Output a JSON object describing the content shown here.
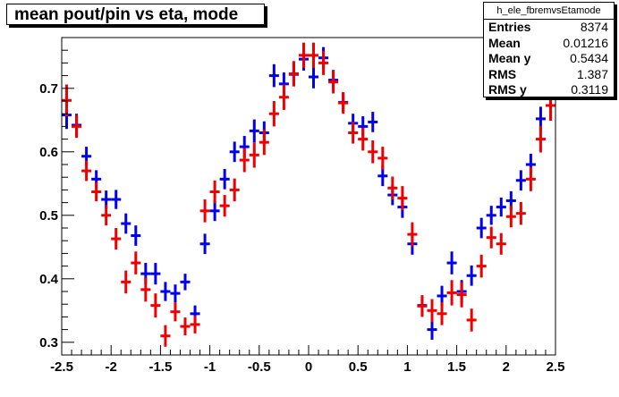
{
  "title": "mean pout/pin vs eta, mode",
  "stats": {
    "name": "h_ele_fbremvsEtamode",
    "rows": [
      {
        "key": "Entries",
        "value": "8374"
      },
      {
        "key": "Mean",
        "value": "0.01216"
      },
      {
        "key": "Mean y",
        "value": "0.5434"
      },
      {
        "key": "RMS",
        "value": "1.387"
      },
      {
        "key": "RMS y",
        "value": "0.3119"
      }
    ]
  },
  "chart_data": {
    "type": "scatter",
    "title": "mean pout/pin vs eta, mode",
    "xlabel": "",
    "ylabel": "",
    "xlim": [
      -2.5,
      2.5
    ],
    "ylim": [
      0.28,
      0.78
    ],
    "x_ticks": [
      -2.5,
      -2,
      -1.5,
      -1,
      -0.5,
      0,
      0.5,
      1,
      1.5,
      2,
      2.5
    ],
    "x_tick_labels": [
      "-2.5",
      "-2",
      "-1.5",
      "-1",
      "-0.5",
      "0",
      "0.5",
      "1",
      "1.5",
      "2",
      "2.5"
    ],
    "y_ticks": [
      0.3,
      0.4,
      0.5,
      0.6,
      0.7
    ],
    "y_tick_labels": [
      "0.3",
      "0.4",
      "0.5",
      "0.6",
      "0.7"
    ],
    "grid": false,
    "bin_half_width": 0.05,
    "series": [
      {
        "color": "#0000ee",
        "x": [
          -2.45,
          -2.35,
          -2.25,
          -2.15,
          -2.05,
          -1.95,
          -1.85,
          -1.75,
          -1.65,
          -1.55,
          -1.45,
          -1.35,
          -1.25,
          -1.15,
          -1.05,
          -0.95,
          -0.85,
          -0.75,
          -0.65,
          -0.55,
          -0.45,
          -0.35,
          -0.25,
          -0.15,
          -0.05,
          0.05,
          0.15,
          0.25,
          0.35,
          0.45,
          0.55,
          0.65,
          0.75,
          0.85,
          0.95,
          1.05,
          1.15,
          1.25,
          1.35,
          1.45,
          1.55,
          1.65,
          1.75,
          1.85,
          1.95,
          2.05,
          2.15,
          2.25,
          2.35,
          2.45
        ],
        "y": [
          0.658,
          0.642,
          0.593,
          0.557,
          0.525,
          0.525,
          0.487,
          0.468,
          0.408,
          0.408,
          0.38,
          0.377,
          0.395,
          0.345,
          0.455,
          0.507,
          0.557,
          0.6,
          0.608,
          0.633,
          0.63,
          0.72,
          0.707,
          0.722,
          0.746,
          0.718,
          0.748,
          0.713,
          0.678,
          0.645,
          0.64,
          0.647,
          0.562,
          0.532,
          0.513,
          0.455,
          0.358,
          0.32,
          0.373,
          0.425,
          0.38,
          0.405,
          0.48,
          0.5,
          0.513,
          0.523,
          0.555,
          0.58,
          0.652,
          0.69
        ],
        "err": [
          0.022,
          0.018,
          0.015,
          0.014,
          0.014,
          0.015,
          0.016,
          0.016,
          0.017,
          0.017,
          0.015,
          0.014,
          0.013,
          0.013,
          0.016,
          0.016,
          0.016,
          0.016,
          0.017,
          0.018,
          0.018,
          0.018,
          0.018,
          0.018,
          0.018,
          0.018,
          0.017,
          0.016,
          0.015,
          0.015,
          0.016,
          0.016,
          0.016,
          0.016,
          0.017,
          0.017,
          0.016,
          0.016,
          0.016,
          0.018,
          0.018,
          0.016,
          0.016,
          0.015,
          0.015,
          0.015,
          0.016,
          0.017,
          0.019,
          0.022
        ]
      },
      {
        "color": "#ee0000",
        "x": [
          -2.45,
          -2.35,
          -2.25,
          -2.15,
          -2.05,
          -1.95,
          -1.85,
          -1.75,
          -1.65,
          -1.55,
          -1.45,
          -1.35,
          -1.25,
          -1.15,
          -1.05,
          -0.95,
          -0.85,
          -0.75,
          -0.65,
          -0.55,
          -0.45,
          -0.35,
          -0.25,
          -0.15,
          -0.05,
          0.05,
          0.15,
          0.25,
          0.35,
          0.45,
          0.55,
          0.65,
          0.75,
          0.85,
          0.95,
          1.05,
          1.15,
          1.25,
          1.35,
          1.45,
          1.55,
          1.65,
          1.75,
          1.85,
          1.95,
          2.05,
          2.15,
          2.25,
          2.35,
          2.45
        ],
        "y": [
          0.681,
          0.64,
          0.57,
          0.537,
          0.5,
          0.463,
          0.395,
          0.425,
          0.383,
          0.358,
          0.31,
          0.348,
          0.325,
          0.328,
          0.507,
          0.537,
          0.515,
          0.54,
          0.587,
          0.595,
          0.615,
          0.66,
          0.686,
          0.723,
          0.752,
          0.752,
          0.74,
          0.71,
          0.677,
          0.63,
          0.62,
          0.6,
          0.59,
          0.543,
          0.527,
          0.47,
          0.357,
          0.35,
          0.345,
          0.378,
          0.375,
          0.335,
          0.42,
          0.465,
          0.455,
          0.498,
          0.503,
          0.557,
          0.62,
          0.673
        ],
        "err": [
          0.025,
          0.018,
          0.016,
          0.015,
          0.016,
          0.017,
          0.018,
          0.018,
          0.019,
          0.019,
          0.017,
          0.015,
          0.014,
          0.014,
          0.018,
          0.018,
          0.017,
          0.018,
          0.019,
          0.02,
          0.02,
          0.02,
          0.02,
          0.02,
          0.02,
          0.02,
          0.019,
          0.018,
          0.017,
          0.017,
          0.018,
          0.018,
          0.018,
          0.018,
          0.019,
          0.019,
          0.017,
          0.018,
          0.018,
          0.02,
          0.02,
          0.018,
          0.018,
          0.017,
          0.017,
          0.017,
          0.018,
          0.019,
          0.021,
          0.024
        ]
      }
    ]
  }
}
